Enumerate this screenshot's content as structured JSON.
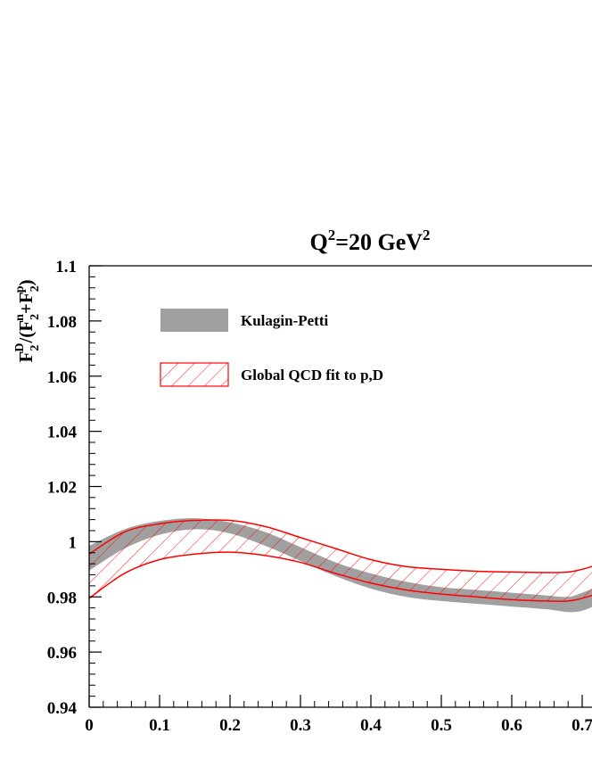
{
  "chart_data": {
    "type": "area",
    "title": {
      "main": "Q",
      "sup": "2",
      "rest": "=20 GeV",
      "sup2": "2"
    },
    "ylabel": {
      "p1": "F",
      "sub1": "2",
      "sup1": "D",
      "p2": "/(F",
      "sub2": "2",
      "sup2": "n",
      "p3": "+F",
      "sub3": "2",
      "sup3": "p",
      "p4": ")"
    },
    "xlim": [
      0,
      0.72
    ],
    "ylim": [
      0.94,
      1.1
    ],
    "xticks": [
      0,
      0.1,
      0.2,
      0.3,
      0.4,
      0.5,
      0.6,
      0.7
    ],
    "xtick_labels": [
      "0",
      "0.1",
      "0.2",
      "0.3",
      "0.4",
      "0.5",
      "0.6",
      "0.7"
    ],
    "yticks": [
      0.94,
      0.96,
      0.98,
      1.0,
      1.02,
      1.04,
      1.06,
      1.08,
      1.1
    ],
    "ytick_labels": [
      "0.94",
      "0.96",
      "0.98",
      "1",
      "1.02",
      "1.04",
      "1.06",
      "1.08",
      "1.1"
    ],
    "legend_position": "top-left",
    "series": [
      {
        "name": "Kulagin-Petti",
        "style": "solid-band",
        "color": "#a0a0a0",
        "x": [
          0.0,
          0.05,
          0.1,
          0.15,
          0.2,
          0.25,
          0.3,
          0.35,
          0.4,
          0.45,
          0.5,
          0.55,
          0.6,
          0.65,
          0.68,
          0.7,
          0.72
        ],
        "y_low": [
          0.9895,
          0.9975,
          1.0025,
          1.0045,
          1.003,
          0.9985,
          0.993,
          0.9875,
          0.983,
          0.98,
          0.9785,
          0.9775,
          0.9765,
          0.9755,
          0.9745,
          0.975,
          0.977
        ],
        "y_high": [
          0.9985,
          1.0045,
          1.0075,
          1.0085,
          1.007,
          1.0035,
          0.998,
          0.9925,
          0.9885,
          0.9855,
          0.9835,
          0.9825,
          0.9815,
          0.9805,
          0.98,
          0.9815,
          0.9835
        ]
      },
      {
        "name": "Global QCD fit to p,D",
        "style": "hatched-band",
        "color": "#ff0000",
        "x": [
          0.0,
          0.05,
          0.1,
          0.15,
          0.2,
          0.25,
          0.3,
          0.35,
          0.4,
          0.45,
          0.5,
          0.55,
          0.6,
          0.65,
          0.68,
          0.7,
          0.72
        ],
        "y_low": [
          0.9795,
          0.9885,
          0.9935,
          0.9955,
          0.9962,
          0.995,
          0.9925,
          0.9885,
          0.985,
          0.9825,
          0.981,
          0.98,
          0.979,
          0.9785,
          0.9785,
          0.9795,
          0.981
        ],
        "y_high": [
          0.9955,
          1.0035,
          1.0065,
          1.0077,
          1.0077,
          1.0055,
          1.0015,
          0.9975,
          0.9935,
          0.991,
          0.99,
          0.9893,
          0.989,
          0.9888,
          0.989,
          0.99,
          0.9915
        ]
      }
    ]
  }
}
